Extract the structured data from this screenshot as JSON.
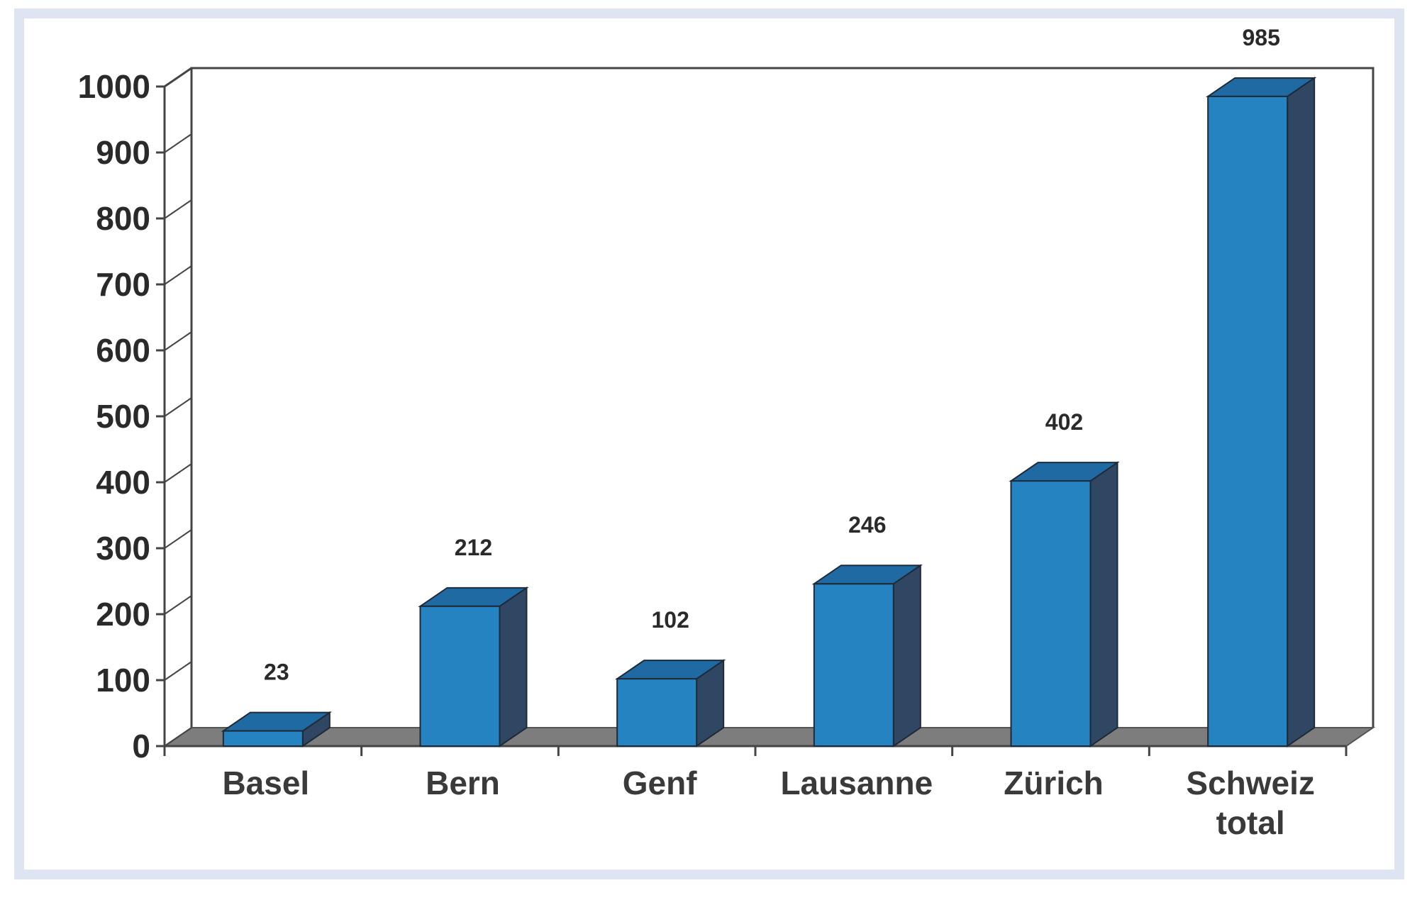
{
  "chart_data": {
    "type": "bar",
    "categories": [
      [
        "Basel"
      ],
      [
        "Bern"
      ],
      [
        "Genf"
      ],
      [
        "Lausanne"
      ],
      [
        "Zürich"
      ],
      [
        "Schweiz",
        "total"
      ]
    ],
    "values": [
      23,
      212,
      102,
      246,
      402,
      985
    ],
    "data_labels": [
      "23",
      "212",
      "102",
      "246",
      "402",
      "985"
    ],
    "title": "",
    "xlabel": "",
    "ylabel": "",
    "ylim": [
      0,
      1000
    ],
    "yticks": [
      0,
      100,
      200,
      300,
      400,
      500,
      600,
      700,
      800,
      900,
      1000
    ],
    "grid": false,
    "legend": "none",
    "style": "3d-column",
    "colors": {
      "bar_front": "#2583c1",
      "bar_top": "#1f6aa3",
      "bar_side": "#2f4763",
      "floor": "#7d7d7d",
      "axis": "#444444",
      "border": "#dfe4f2"
    }
  }
}
